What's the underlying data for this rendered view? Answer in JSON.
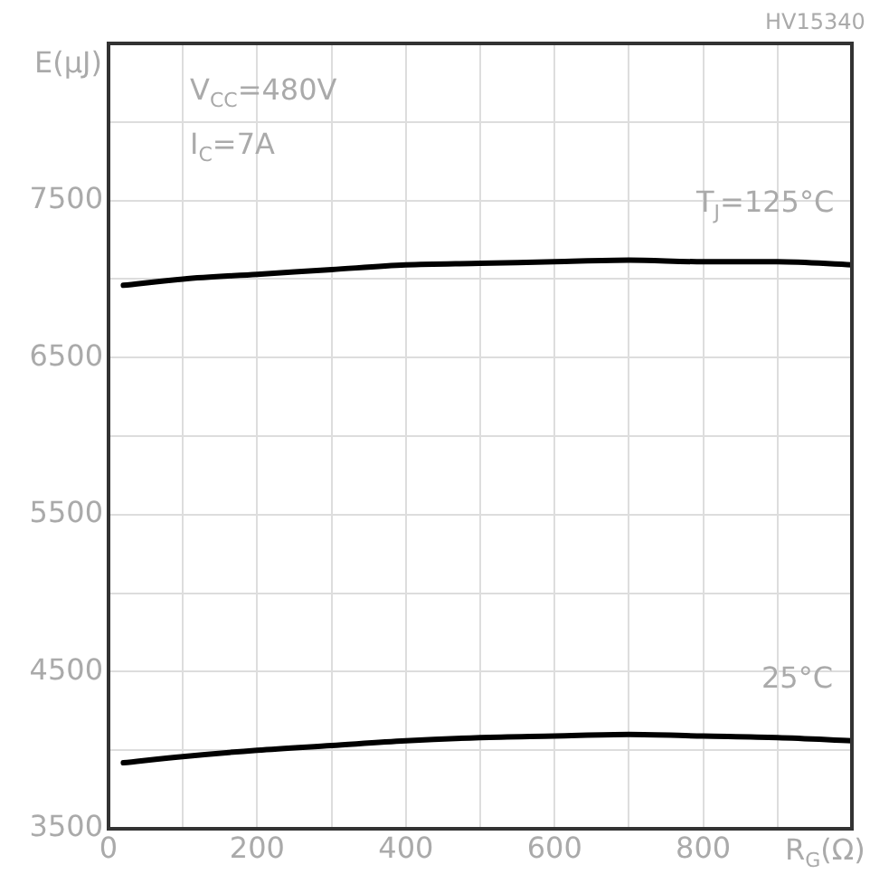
{
  "chart_data": {
    "type": "line",
    "xlabel": "R$_{G}$(Ω)",
    "ylabel": "E(μJ)",
    "xlim": [
      0,
      1000
    ],
    "xticks": [
      0,
      {
        "value": 100,
        "label": null
      },
      200,
      {
        "value": 300,
        "label": null
      },
      400,
      {
        "value": 500,
        "label": null
      },
      600,
      {
        "value": 700,
        "label": null
      },
      800,
      {
        "value": 900,
        "label": null
      },
      {
        "value": 1000,
        "label": null
      }
    ],
    "ylim": [
      3500,
      8500
    ],
    "yticks": [
      3500,
      {
        "value": 4000,
        "label": null
      },
      4500,
      {
        "value": 5000,
        "label": null
      },
      5500,
      {
        "value": 6000,
        "label": null
      },
      6500,
      {
        "value": 7000,
        "label": null
      },
      7500,
      {
        "value": 8000,
        "label": null
      },
      {
        "value": 8500,
        "label": null
      }
    ],
    "grid": true,
    "legend": false,
    "marker": "none",
    "line_style": "solid",
    "x": [
      20,
      100,
      200,
      300,
      400,
      500,
      600,
      700,
      800,
      900,
      1000
    ],
    "series": [
      {
        "name": "T$_{J}$=125°C",
        "color": "#000000",
        "values": [
          6960,
          7000,
          7030,
          7060,
          7090,
          7100,
          7110,
          7120,
          7110,
          7110,
          7090
        ]
      },
      {
        "name": "25°C",
        "color": "#000000",
        "values": [
          3920,
          3960,
          4000,
          4030,
          4060,
          4080,
          4090,
          4100,
          4090,
          4080,
          4060
        ]
      }
    ],
    "annotations": [
      "HV15340",
      "V$_{CC}$=480V",
      "I$_{C}$=7A"
    ]
  }
}
